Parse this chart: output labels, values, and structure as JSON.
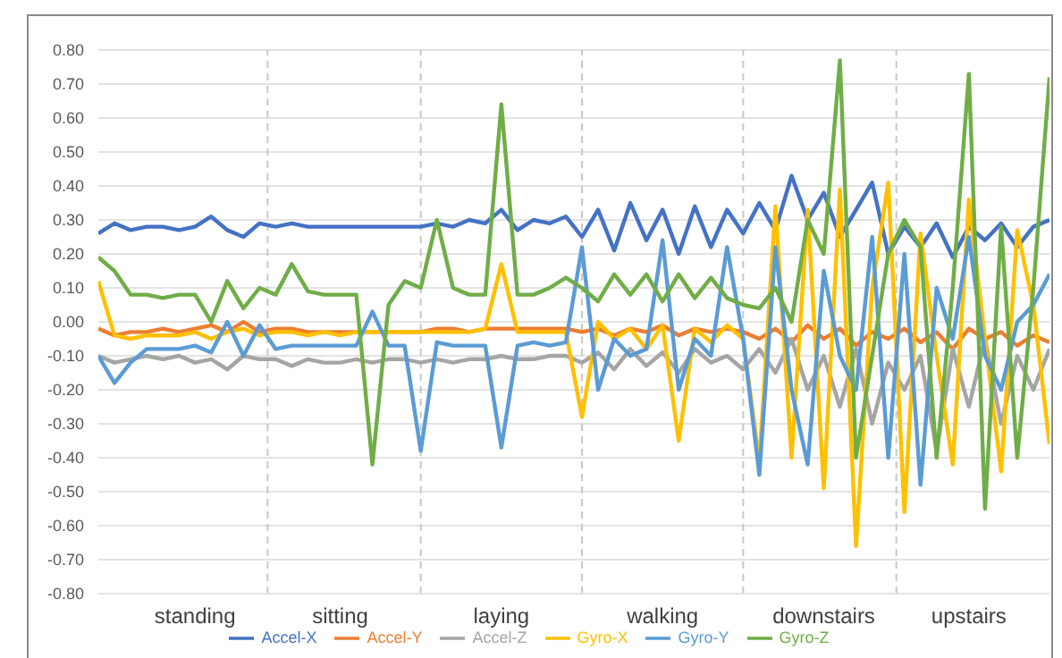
{
  "chart_data": {
    "type": "line",
    "categories": [
      null,
      null,
      null,
      null,
      null,
      null,
      "standing",
      null,
      null,
      null,
      null,
      null,
      null,
      null,
      null,
      "sitting",
      null,
      null,
      null,
      null,
      null,
      null,
      null,
      null,
      null,
      "laying",
      null,
      null,
      null,
      null,
      null,
      null,
      null,
      null,
      null,
      "walking",
      null,
      null,
      null,
      null,
      null,
      null,
      null,
      null,
      null,
      "downstairs",
      null,
      null,
      null,
      null,
      null,
      null,
      null,
      null,
      "upstairs",
      null,
      null,
      null,
      null,
      null
    ],
    "series": [
      {
        "name": "Accel-X",
        "color": "#4472c4",
        "values": [
          0.26,
          0.29,
          0.27,
          0.28,
          0.28,
          0.27,
          0.28,
          0.31,
          0.27,
          0.25,
          0.29,
          0.28,
          0.29,
          0.28,
          0.28,
          0.28,
          0.28,
          0.28,
          0.28,
          0.28,
          0.28,
          0.29,
          0.28,
          0.3,
          0.29,
          0.33,
          0.27,
          0.3,
          0.29,
          0.31,
          0.25,
          0.33,
          0.21,
          0.35,
          0.24,
          0.33,
          0.2,
          0.34,
          0.22,
          0.33,
          0.26,
          0.35,
          0.27,
          0.43,
          0.3,
          0.38,
          0.25,
          0.33,
          0.41,
          0.2,
          0.28,
          0.22,
          0.29,
          0.19,
          0.28,
          0.24,
          0.29,
          0.22,
          0.28,
          0.3
        ]
      },
      {
        "name": "Accel-Y",
        "color": "#ed7d31",
        "values": [
          -0.02,
          -0.04,
          -0.03,
          -0.03,
          -0.02,
          -0.03,
          -0.02,
          -0.01,
          -0.03,
          0.0,
          -0.03,
          -0.02,
          -0.02,
          -0.03,
          -0.03,
          -0.03,
          -0.03,
          -0.03,
          -0.03,
          -0.03,
          -0.03,
          -0.02,
          -0.02,
          -0.03,
          -0.02,
          -0.02,
          -0.02,
          -0.02,
          -0.02,
          -0.02,
          -0.03,
          -0.02,
          -0.04,
          -0.02,
          -0.03,
          -0.01,
          -0.04,
          -0.02,
          -0.03,
          -0.02,
          -0.03,
          -0.05,
          -0.02,
          -0.06,
          -0.01,
          -0.05,
          -0.02,
          -0.07,
          -0.03,
          -0.05,
          -0.02,
          -0.06,
          -0.03,
          -0.08,
          -0.02,
          -0.05,
          -0.03,
          -0.07,
          -0.04,
          -0.06
        ]
      },
      {
        "name": "Accel-Z",
        "color": "#a5a5a5",
        "values": [
          -0.1,
          -0.12,
          -0.11,
          -0.1,
          -0.11,
          -0.1,
          -0.12,
          -0.11,
          -0.14,
          -0.1,
          -0.11,
          -0.11,
          -0.13,
          -0.11,
          -0.12,
          -0.12,
          -0.11,
          -0.12,
          -0.11,
          -0.11,
          -0.12,
          -0.11,
          -0.12,
          -0.11,
          -0.11,
          -0.1,
          -0.11,
          -0.11,
          -0.1,
          -0.1,
          -0.12,
          -0.09,
          -0.14,
          -0.08,
          -0.13,
          -0.09,
          -0.15,
          -0.08,
          -0.12,
          -0.1,
          -0.14,
          -0.08,
          -0.15,
          -0.05,
          -0.2,
          -0.1,
          -0.25,
          -0.08,
          -0.3,
          -0.12,
          -0.2,
          -0.1,
          -0.38,
          -0.08,
          -0.25,
          -0.05,
          -0.3,
          -0.1,
          -0.2,
          -0.08
        ]
      },
      {
        "name": "Gyro-X",
        "color": "#ffc000",
        "values": [
          0.12,
          -0.04,
          -0.05,
          -0.04,
          -0.04,
          -0.04,
          -0.03,
          -0.05,
          -0.03,
          -0.02,
          -0.04,
          -0.03,
          -0.03,
          -0.04,
          -0.03,
          -0.04,
          -0.03,
          -0.03,
          -0.03,
          -0.03,
          -0.03,
          -0.03,
          -0.03,
          -0.03,
          -0.02,
          0.17,
          -0.03,
          -0.03,
          -0.03,
          -0.03,
          -0.28,
          0.0,
          -0.05,
          -0.02,
          -0.08,
          -0.01,
          -0.35,
          -0.02,
          -0.06,
          -0.01,
          -0.05,
          -0.41,
          0.34,
          -0.4,
          0.33,
          -0.49,
          0.39,
          -0.66,
          0.1,
          0.41,
          -0.56,
          0.26,
          -0.1,
          -0.42,
          0.36,
          -0.05,
          -0.44,
          0.27,
          0.05,
          -0.36
        ]
      },
      {
        "name": "Gyro-Y",
        "color": "#5b9bd5",
        "values": [
          -0.1,
          -0.18,
          -0.12,
          -0.08,
          -0.08,
          -0.08,
          -0.07,
          -0.09,
          0.0,
          -0.1,
          -0.01,
          -0.08,
          -0.07,
          -0.07,
          -0.07,
          -0.07,
          -0.07,
          0.03,
          -0.07,
          -0.07,
          -0.38,
          -0.06,
          -0.07,
          -0.07,
          -0.07,
          -0.37,
          -0.07,
          -0.06,
          -0.07,
          -0.06,
          0.22,
          -0.2,
          -0.05,
          -0.1,
          -0.08,
          0.24,
          -0.2,
          -0.05,
          -0.1,
          0.22,
          -0.05,
          -0.45,
          0.22,
          -0.2,
          -0.42,
          0.15,
          -0.1,
          -0.2,
          0.25,
          -0.4,
          0.2,
          -0.48,
          0.1,
          -0.05,
          0.25,
          -0.1,
          -0.2,
          0.0,
          0.05,
          0.14
        ]
      },
      {
        "name": "Gyro-Z",
        "color": "#70ad47",
        "values": [
          0.19,
          0.15,
          0.08,
          0.08,
          0.07,
          0.08,
          0.08,
          0.0,
          0.12,
          0.04,
          0.1,
          0.08,
          0.17,
          0.09,
          0.08,
          0.08,
          0.08,
          -0.42,
          0.05,
          0.12,
          0.1,
          0.3,
          0.1,
          0.08,
          0.08,
          0.64,
          0.08,
          0.08,
          0.1,
          0.13,
          0.1,
          0.06,
          0.14,
          0.08,
          0.14,
          0.06,
          0.14,
          0.07,
          0.13,
          0.07,
          0.05,
          0.04,
          0.1,
          0.0,
          0.3,
          0.2,
          0.77,
          -0.4,
          -0.1,
          0.2,
          0.3,
          0.22,
          -0.4,
          0.1,
          0.73,
          -0.55,
          0.28,
          -0.4,
          0.1,
          0.72
        ]
      }
    ],
    "ylim": [
      -0.8,
      0.8
    ],
    "yticks": [
      {
        "value": -0.8,
        "label": "-0.80"
      },
      {
        "value": -0.7,
        "label": "-0.70"
      },
      {
        "value": -0.6,
        "label": "-0.60"
      },
      {
        "value": -0.5,
        "label": "-0.50"
      },
      {
        "value": -0.4,
        "label": "-0.40"
      },
      {
        "value": -0.3,
        "label": "-0.30"
      },
      {
        "value": -0.2,
        "label": "-0.20"
      },
      {
        "value": -0.1,
        "label": "-0.10"
      },
      {
        "value": 0,
        "label": "0.00"
      },
      {
        "value": 0.1,
        "label": "0.10"
      },
      {
        "value": 0.2,
        "label": "0.20"
      },
      {
        "value": 0.3,
        "label": "0.30"
      },
      {
        "value": 0.4,
        "label": "0.40"
      },
      {
        "value": 0.5,
        "label": "0.50"
      },
      {
        "value": 0.6,
        "label": "0.60"
      },
      {
        "value": 0.7,
        "label": "0.70"
      },
      {
        "value": 0.8,
        "label": "0.80"
      }
    ],
    "grid": "y",
    "legend": "bottom",
    "marker": "none",
    "line_style": "solid"
  }
}
